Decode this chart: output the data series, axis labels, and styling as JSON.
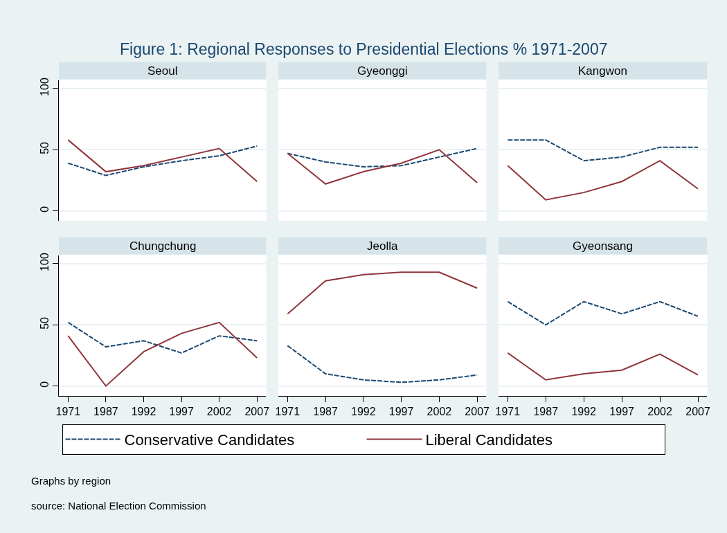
{
  "chart_data": [
    {
      "type": "line",
      "title": "Seoul",
      "annotations": [
        "Figure 1: Regional Responses to Presidential Elections % 1971-2007"
      ],
      "categories": [
        "1971",
        "1987",
        "1992",
        "1997",
        "2002",
        "2007"
      ],
      "ylim": [
        -8,
        107
      ],
      "yticks": [
        0,
        50,
        100
      ],
      "grid": "y",
      "legend": "bottom",
      "tick_labels": "y",
      "series": [
        {
          "name": "Conservative Candidates",
          "color": "#1a476f",
          "line_style": "dashed",
          "values": [
            39,
            29,
            36,
            41,
            45,
            53
          ]
        },
        {
          "name": "Liberal Candidates",
          "color": "#90353b",
          "line_style": "solid",
          "values": [
            58,
            32,
            37,
            44,
            51,
            24
          ]
        }
      ]
    },
    {
      "type": "line",
      "title": "Gyeonggi",
      "categories": [
        "1971",
        "1987",
        "1992",
        "1997",
        "2002",
        "2007"
      ],
      "ylim": [
        -8,
        107
      ],
      "yticks": [
        0,
        50,
        100
      ],
      "grid": "y",
      "tick_labels": false,
      "series": [
        {
          "color": "#1a476f",
          "line_style": "dashed",
          "values": [
            47,
            40,
            36,
            37,
            44,
            51
          ]
        },
        {
          "color": "#90353b",
          "line_style": "solid",
          "values": [
            47,
            22,
            32,
            39,
            50,
            23
          ]
        }
      ]
    },
    {
      "type": "line",
      "title": "Kangwon",
      "categories": [
        "1971",
        "1987",
        "1992",
        "1997",
        "2002",
        "2007"
      ],
      "ylim": [
        -8,
        107
      ],
      "yticks": [
        0,
        50,
        100
      ],
      "grid": "y",
      "tick_labels": false,
      "series": [
        {
          "color": "#1a476f",
          "line_style": "dashed",
          "values": [
            58,
            58,
            41,
            44,
            52,
            52
          ]
        },
        {
          "color": "#90353b",
          "line_style": "solid",
          "values": [
            37,
            9,
            15,
            24,
            41,
            18
          ]
        }
      ]
    },
    {
      "type": "line",
      "title": "Chungchung",
      "categories": [
        "1971",
        "1987",
        "1992",
        "1997",
        "2002",
        "2007"
      ],
      "ylim": [
        -8,
        107
      ],
      "yticks": [
        0,
        50,
        100
      ],
      "grid": "y",
      "series": [
        {
          "color": "#1a476f",
          "line_style": "dashed",
          "values": [
            52,
            32,
            37,
            27,
            41,
            37
          ]
        },
        {
          "color": "#90353b",
          "line_style": "solid",
          "values": [
            41,
            0,
            28,
            43,
            52,
            23
          ]
        }
      ]
    },
    {
      "type": "line",
      "title": "Jeolla",
      "categories": [
        "1971",
        "1987",
        "1992",
        "1997",
        "2002",
        "2007"
      ],
      "ylim": [
        -8,
        107
      ],
      "yticks": [
        0,
        50,
        100
      ],
      "grid": "y",
      "tick_labels": "x",
      "series": [
        {
          "color": "#1a476f",
          "line_style": "dashed",
          "values": [
            33,
            10,
            5,
            3,
            5,
            9
          ]
        },
        {
          "color": "#90353b",
          "line_style": "solid",
          "values": [
            59,
            86,
            91,
            93,
            93,
            80
          ]
        }
      ]
    },
    {
      "type": "line",
      "title": "Gyeonsang",
      "annotations": [
        "Graphs by region",
        "source: National Election Commission"
      ],
      "categories": [
        "1971",
        "1987",
        "1992",
        "1997",
        "2002",
        "2007"
      ],
      "ylim": [
        -8,
        107
      ],
      "yticks": [
        0,
        50,
        100
      ],
      "grid": "y",
      "tick_labels": "x",
      "series": [
        {
          "color": "#1a476f",
          "line_style": "dashed",
          "values": [
            69,
            50,
            69,
            59,
            69,
            57
          ]
        },
        {
          "color": "#90353b",
          "line_style": "solid",
          "values": [
            27,
            5,
            10,
            13,
            26,
            9
          ]
        }
      ]
    }
  ]
}
